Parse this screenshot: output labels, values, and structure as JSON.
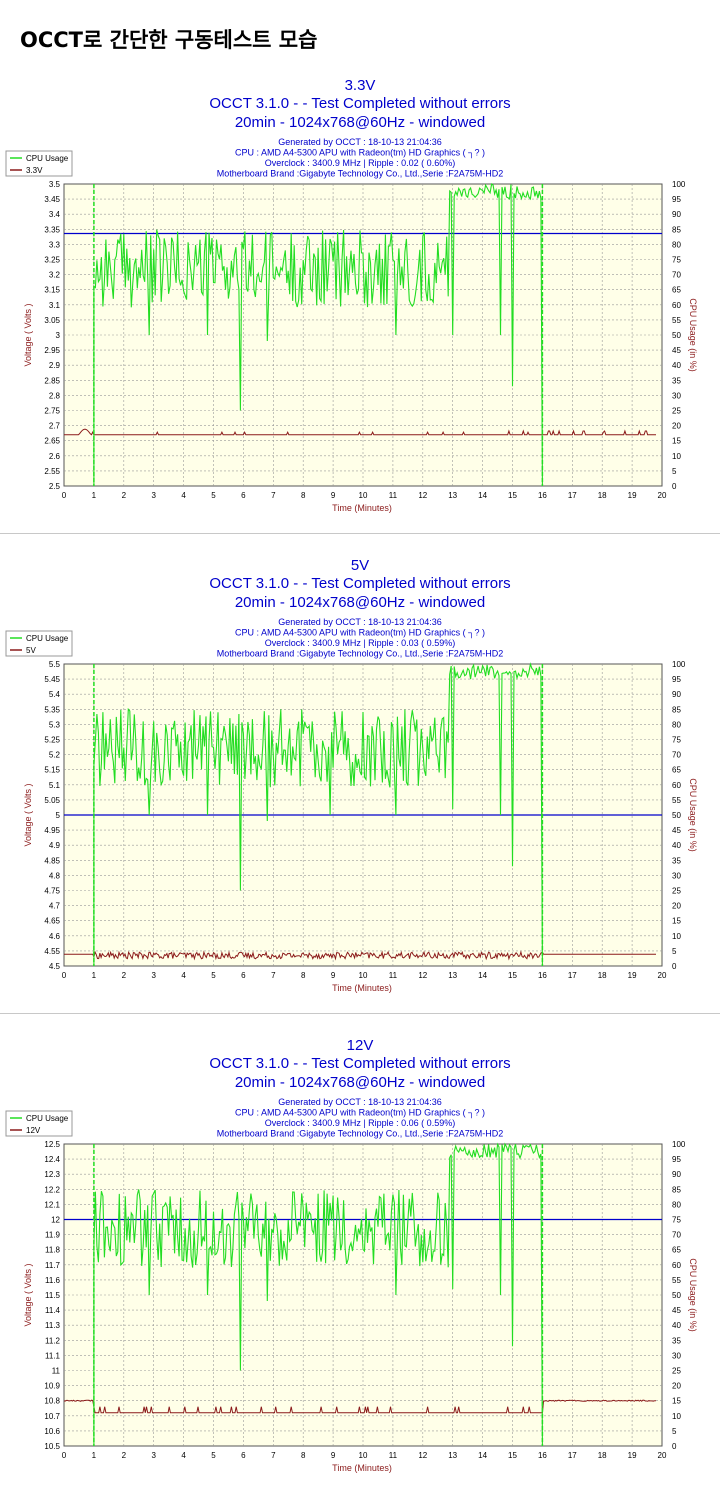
{
  "page": {
    "title": "OCCT로 간단한 구동테스트 모습"
  },
  "colors": {
    "cpu": "#22dd22",
    "voltage": "#8b1a1a",
    "reference": "#0000cc",
    "plot_bg": "#ffffe8",
    "grid": "#999999",
    "title": "#0000cc"
  },
  "chart_data": [
    {
      "type": "line",
      "title": "3.3V",
      "subtitle1": "OCCT 3.1.0 -  - Test Completed without errors",
      "subtitle2": "20min - 1024x768@60Hz - windowed",
      "info": [
        "Generated by OCCT : 18-10-13 21:04:36",
        "CPU : AMD A4-5300 APU with Radeon(tm) HD Graphics  ( ┐? )",
        "Overclock : 3400.9 MHz | Ripple : 0.02 ( 0.60%)",
        "Motherboard Brand :Gigabyte Technology Co., Ltd.,Serie :F2A75M-HD2"
      ],
      "legend": [
        "CPU Usage",
        "3.3V"
      ],
      "xlabel": "Time (Minutes)",
      "ylabel_left": "Voltage ( Volts )",
      "ylabel_right": "CPU Usage (in %)",
      "xlim": [
        0,
        20
      ],
      "ylim_left": [
        2.5,
        3.5
      ],
      "ylim_right": [
        0,
        100
      ],
      "xticks": [
        "0",
        "1",
        "2",
        "3",
        "4",
        "5",
        "6",
        "7",
        "8",
        "9",
        "10",
        "11",
        "12",
        "13",
        "14",
        "15",
        "16",
        "17",
        "18",
        "19",
        "20"
      ],
      "yticks_left": [
        "3.5",
        "3.45",
        "3.4",
        "3.35",
        "3.3",
        "3.25",
        "3.2",
        "3.15",
        "3.1",
        "3.05",
        "3",
        "2.95",
        "2.9",
        "2.85",
        "2.8",
        "2.75",
        "2.7",
        "2.65",
        "2.6",
        "2.55",
        "2.5"
      ],
      "yticks_right": [
        "100",
        "95",
        "90",
        "85",
        "80",
        "75",
        "70",
        "65",
        "60",
        "55",
        "50",
        "45",
        "40",
        "35",
        "30",
        "25",
        "20",
        "15",
        "10",
        "5",
        "0"
      ],
      "reference_voltage": 3.336,
      "voltage_baseline": 2.67,
      "voltage_pattern": "sparse",
      "cpu_spikes": [
        [
          2.85,
          50
        ],
        [
          4.8,
          50
        ],
        [
          5.9,
          25
        ],
        [
          6.8,
          48
        ],
        [
          11.1,
          50
        ],
        [
          10.7,
          60
        ],
        [
          13.0,
          50
        ],
        [
          14.6,
          50
        ],
        [
          15.0,
          33
        ]
      ]
    },
    {
      "type": "line",
      "title": "5V",
      "subtitle1": "OCCT 3.1.0 -  - Test Completed without errors",
      "subtitle2": "20min - 1024x768@60Hz - windowed",
      "info": [
        "Generated by OCCT : 18-10-13 21:04:36",
        "CPU : AMD A4-5300 APU with Radeon(tm) HD Graphics  ( ┐? )",
        "Overclock : 3400.9 MHz | Ripple : 0.03 ( 0.59%)",
        "Motherboard Brand :Gigabyte Technology Co., Ltd.,Serie :F2A75M-HD2"
      ],
      "legend": [
        "CPU Usage",
        "5V"
      ],
      "xlabel": "Time (Minutes)",
      "ylabel_left": "Voltage ( Volts )",
      "ylabel_right": "CPU Usage (in %)",
      "xlim": [
        0,
        20
      ],
      "ylim_left": [
        4.5,
        5.5
      ],
      "ylim_right": [
        0,
        100
      ],
      "xticks": [
        "0",
        "1",
        "2",
        "3",
        "4",
        "5",
        "6",
        "7",
        "8",
        "9",
        "10",
        "11",
        "12",
        "13",
        "14",
        "15",
        "16",
        "17",
        "18",
        "19",
        "20"
      ],
      "yticks_left": [
        "5.5",
        "5.45",
        "5.4",
        "5.35",
        "5.3",
        "5.25",
        "5.2",
        "5.15",
        "5.1",
        "5.05",
        "5",
        "4.95",
        "4.9",
        "4.85",
        "4.8",
        "4.75",
        "4.7",
        "4.65",
        "4.6",
        "4.55",
        "4.5"
      ],
      "yticks_right": [
        "100",
        "95",
        "90",
        "85",
        "80",
        "75",
        "70",
        "65",
        "60",
        "55",
        "50",
        "45",
        "40",
        "35",
        "30",
        "25",
        "20",
        "15",
        "10",
        "5",
        "0"
      ],
      "reference_voltage": 5.0,
      "voltage_baseline": 4.535,
      "voltage_pattern": "ripple",
      "cpu_spikes": [
        [
          2.85,
          50
        ],
        [
          4.8,
          50
        ],
        [
          5.9,
          25
        ],
        [
          6.8,
          48
        ],
        [
          8.9,
          50
        ],
        [
          11.1,
          50
        ],
        [
          13.0,
          52
        ],
        [
          14.6,
          50
        ],
        [
          15.0,
          33
        ]
      ]
    },
    {
      "type": "line",
      "title": "12V",
      "subtitle1": "OCCT 3.1.0 -  - Test Completed without errors",
      "subtitle2": "20min - 1024x768@60Hz - windowed",
      "info": [
        "Generated by OCCT : 18-10-13 21:04:36",
        "CPU : AMD A4-5300 APU with Radeon(tm) HD Graphics  ( ┐? )",
        "Overclock : 3400.9 MHz | Ripple : 0.06 ( 0.59%)",
        "Motherboard Brand :Gigabyte Technology Co., Ltd.,Serie :F2A75M-HD2"
      ],
      "legend": [
        "CPU Usage",
        "12V"
      ],
      "xlabel": "Time (Minutes)",
      "ylabel_left": "Voltage ( Volts )",
      "ylabel_right": "CPU Usage (in %)",
      "xlim": [
        0,
        20
      ],
      "ylim_left": [
        10.5,
        12.5
      ],
      "ylim_right": [
        0,
        100
      ],
      "xticks": [
        "0",
        "1",
        "2",
        "3",
        "4",
        "5",
        "6",
        "7",
        "8",
        "9",
        "10",
        "11",
        "12",
        "13",
        "14",
        "15",
        "16",
        "17",
        "18",
        "19",
        "20"
      ],
      "yticks_left": [
        "12.5",
        "12.4",
        "12.3",
        "12.2",
        "12.1",
        "12",
        "11.9",
        "11.8",
        "11.7",
        "11.6",
        "11.5",
        "11.4",
        "11.3",
        "11.2",
        "11.1",
        "11",
        "10.9",
        "10.8",
        "10.7",
        "10.6",
        "10.5"
      ],
      "yticks_right": [
        "100",
        "95",
        "90",
        "85",
        "80",
        "75",
        "70",
        "65",
        "60",
        "55",
        "50",
        "45",
        "40",
        "35",
        "30",
        "25",
        "20",
        "15",
        "10",
        "5",
        "0"
      ],
      "reference_voltage": 12.0,
      "voltage_baseline": 10.72,
      "voltage_high": 10.8,
      "voltage_pattern": "step",
      "cpu_spikes": [
        [
          2.85,
          50
        ],
        [
          4.8,
          50
        ],
        [
          5.9,
          25
        ],
        [
          6.8,
          48
        ],
        [
          11.1,
          50
        ],
        [
          13.0,
          52
        ],
        [
          14.6,
          50
        ],
        [
          15.0,
          33
        ]
      ]
    }
  ]
}
